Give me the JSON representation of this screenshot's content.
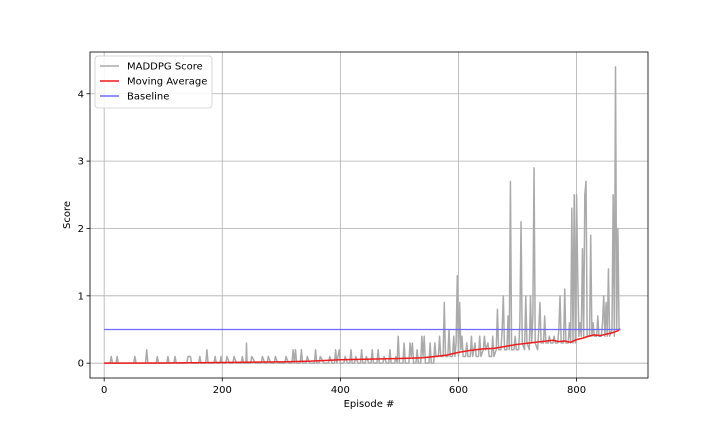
{
  "chart_data": {
    "type": "line",
    "title": "",
    "xlabel": "Episode #",
    "ylabel": "Score",
    "xlim": [
      -24,
      921
    ],
    "ylim": [
      -0.22,
      4.62
    ],
    "x_ticks": [
      0,
      200,
      400,
      600,
      800
    ],
    "y_ticks": [
      0,
      1,
      2,
      3,
      4
    ],
    "grid": true,
    "legend_position": "top-left",
    "series": [
      {
        "name": "MADDPG Score",
        "color": "#aaaaaa",
        "points": [
          [
            0,
            0
          ],
          [
            10,
            0
          ],
          [
            12,
            0.1
          ],
          [
            14,
            0
          ],
          [
            20,
            0
          ],
          [
            22,
            0.1
          ],
          [
            24,
            0
          ],
          [
            50,
            0
          ],
          [
            52,
            0.1
          ],
          [
            54,
            0
          ],
          [
            70,
            0
          ],
          [
            72,
            0.2
          ],
          [
            74,
            0
          ],
          [
            88,
            0
          ],
          [
            90,
            0.1
          ],
          [
            92,
            0
          ],
          [
            106,
            0
          ],
          [
            108,
            0.1
          ],
          [
            110,
            0
          ],
          [
            118,
            0
          ],
          [
            120,
            0.1
          ],
          [
            122,
            0
          ],
          [
            140,
            0
          ],
          [
            142,
            0.1
          ],
          [
            146,
            0.1
          ],
          [
            148,
            0
          ],
          [
            160,
            0
          ],
          [
            162,
            0.1
          ],
          [
            164,
            0
          ],
          [
            172,
            0
          ],
          [
            174,
            0.2
          ],
          [
            176,
            0
          ],
          [
            186,
            0
          ],
          [
            188,
            0.1
          ],
          [
            190,
            0
          ],
          [
            196,
            0
          ],
          [
            198,
            0.1
          ],
          [
            200,
            0
          ],
          [
            206,
            0
          ],
          [
            208,
            0.1
          ],
          [
            212,
            0
          ],
          [
            218,
            0
          ],
          [
            220,
            0.1
          ],
          [
            224,
            0
          ],
          [
            232,
            0
          ],
          [
            234,
            0.1
          ],
          [
            236,
            0
          ],
          [
            240,
            0
          ],
          [
            241,
            0.3
          ],
          [
            242,
            0
          ],
          [
            248,
            0
          ],
          [
            250,
            0.1
          ],
          [
            256,
            0
          ],
          [
            266,
            0
          ],
          [
            268,
            0.1
          ],
          [
            272,
            0
          ],
          [
            276,
            0
          ],
          [
            278,
            0.1
          ],
          [
            282,
            0
          ],
          [
            288,
            0
          ],
          [
            290,
            0.1
          ],
          [
            294,
            0
          ],
          [
            306,
            0
          ],
          [
            308,
            0.1
          ],
          [
            312,
            0
          ],
          [
            318,
            0
          ],
          [
            320,
            0.2
          ],
          [
            322,
            0
          ],
          [
            324,
            0.2
          ],
          [
            326,
            0
          ],
          [
            332,
            0
          ],
          [
            334,
            0.2
          ],
          [
            336,
            0
          ],
          [
            342,
            0
          ],
          [
            344,
            0.1
          ],
          [
            348,
            0
          ],
          [
            356,
            0
          ],
          [
            358,
            0.2
          ],
          [
            360,
            0
          ],
          [
            364,
            0
          ],
          [
            366,
            0.1
          ],
          [
            372,
            0
          ],
          [
            380,
            0
          ],
          [
            382,
            0.1
          ],
          [
            386,
            0
          ],
          [
            390,
            0
          ],
          [
            392,
            0.2
          ],
          [
            394,
            0
          ],
          [
            398,
            0.2
          ],
          [
            400,
            0
          ],
          [
            406,
            0
          ],
          [
            408,
            0.1
          ],
          [
            412,
            0
          ],
          [
            416,
            0
          ],
          [
            418,
            0.2
          ],
          [
            420,
            0
          ],
          [
            424,
            0
          ],
          [
            426,
            0.1
          ],
          [
            430,
            0
          ],
          [
            434,
            0
          ],
          [
            436,
            0.2
          ],
          [
            438,
            0
          ],
          [
            442,
            0
          ],
          [
            444,
            0.1
          ],
          [
            448,
            0
          ],
          [
            452,
            0
          ],
          [
            454,
            0.2
          ],
          [
            456,
            0
          ],
          [
            462,
            0
          ],
          [
            464,
            0.2
          ],
          [
            466,
            0
          ],
          [
            472,
            0
          ],
          [
            474,
            0.1
          ],
          [
            478,
            0
          ],
          [
            482,
            0
          ],
          [
            484,
            0.2
          ],
          [
            486,
            0
          ],
          [
            492,
            0
          ],
          [
            494,
            0.1
          ],
          [
            496,
            0
          ],
          [
            498,
            0.4
          ],
          [
            500,
            0
          ],
          [
            506,
            0
          ],
          [
            508,
            0.3
          ],
          [
            510,
            0
          ],
          [
            516,
            0
          ],
          [
            518,
            0.3
          ],
          [
            520,
            0.1
          ],
          [
            522,
            0.3
          ],
          [
            524,
            0
          ],
          [
            528,
            0
          ],
          [
            530,
            0.2
          ],
          [
            532,
            0
          ],
          [
            536,
            0
          ],
          [
            538,
            0.4
          ],
          [
            540,
            0.1
          ],
          [
            542,
            0.4
          ],
          [
            544,
            0
          ],
          [
            550,
            0
          ],
          [
            552,
            0.3
          ],
          [
            554,
            0
          ],
          [
            558,
            0
          ],
          [
            560,
            0.3
          ],
          [
            562,
            0.1
          ],
          [
            566,
            0.1
          ],
          [
            568,
            0.4
          ],
          [
            570,
            0.1
          ],
          [
            574,
            0.1
          ],
          [
            576,
            0.9
          ],
          [
            578,
            0.1
          ],
          [
            582,
            0.1
          ],
          [
            584,
            0.5
          ],
          [
            586,
            0.1
          ],
          [
            590,
            0.1
          ],
          [
            592,
            0.4
          ],
          [
            594,
            0.1
          ],
          [
            596,
            0.3
          ],
          [
            598,
            1.3
          ],
          [
            600,
            0.1
          ],
          [
            602,
            0.9
          ],
          [
            604,
            0.2
          ],
          [
            606,
            0.4
          ],
          [
            608,
            0.1
          ],
          [
            612,
            0.1
          ],
          [
            614,
            0.3
          ],
          [
            616,
            0.1
          ],
          [
            620,
            0.1
          ],
          [
            622,
            0.4
          ],
          [
            624,
            0.1
          ],
          [
            628,
            0.3
          ],
          [
            630,
            0.1
          ],
          [
            634,
            0.1
          ],
          [
            636,
            0.4
          ],
          [
            638,
            0.1
          ],
          [
            642,
            0.2
          ],
          [
            644,
            0.4
          ],
          [
            646,
            0.2
          ],
          [
            650,
            0.3
          ],
          [
            652,
            0.1
          ],
          [
            656,
            0.1
          ],
          [
            658,
            0.4
          ],
          [
            660,
            0.1
          ],
          [
            664,
            0.2
          ],
          [
            666,
            0.8
          ],
          [
            668,
            0.2
          ],
          [
            672,
            0.2
          ],
          [
            674,
            0.5
          ],
          [
            676,
            1.0
          ],
          [
            678,
            0.2
          ],
          [
            682,
            0.2
          ],
          [
            684,
            0.7
          ],
          [
            686,
            0.2
          ],
          [
            688,
            2.7
          ],
          [
            690,
            0.2
          ],
          [
            694,
            0.2
          ],
          [
            696,
            0.4
          ],
          [
            698,
            0.2
          ],
          [
            702,
            0.2
          ],
          [
            704,
            0.6
          ],
          [
            706,
            2.1
          ],
          [
            708,
            0.3
          ],
          [
            712,
            0.2
          ],
          [
            714,
            1.0
          ],
          [
            716,
            0.3
          ],
          [
            720,
            0.2
          ],
          [
            722,
            1.0
          ],
          [
            724,
            0.3
          ],
          [
            726,
            0.7
          ],
          [
            728,
            2.9
          ],
          [
            730,
            0.3
          ],
          [
            734,
            0.2
          ],
          [
            736,
            0.5
          ],
          [
            738,
            0.9
          ],
          [
            740,
            0.3
          ],
          [
            744,
            0.3
          ],
          [
            746,
            0.7
          ],
          [
            748,
            0.3
          ],
          [
            752,
            0.3
          ],
          [
            754,
            0.4
          ],
          [
            756,
            0.3
          ],
          [
            760,
            0.3
          ],
          [
            762,
            0.4
          ],
          [
            764,
            0.3
          ],
          [
            768,
            0.3
          ],
          [
            770,
            0.5
          ],
          [
            772,
            1.0
          ],
          [
            774,
            0.3
          ],
          [
            778,
            0.3
          ],
          [
            780,
            1.1
          ],
          [
            782,
            0.3
          ],
          [
            786,
            0.3
          ],
          [
            788,
            0.6
          ],
          [
            790,
            0.3
          ],
          [
            792,
            2.3
          ],
          [
            794,
            0.3
          ],
          [
            796,
            2.5
          ],
          [
            798,
            0.3
          ],
          [
            800,
            2.5
          ],
          [
            802,
            1.3
          ],
          [
            804,
            0.4
          ],
          [
            806,
            0.6
          ],
          [
            808,
            0.4
          ],
          [
            810,
            1.7
          ],
          [
            812,
            0.4
          ],
          [
            814,
            2.5
          ],
          [
            816,
            2.7
          ],
          [
            818,
            0.4
          ],
          [
            822,
            0.4
          ],
          [
            824,
            1.9
          ],
          [
            826,
            0.4
          ],
          [
            828,
            0.6
          ],
          [
            830,
            0.4
          ],
          [
            834,
            0.4
          ],
          [
            836,
            0.7
          ],
          [
            838,
            0.4
          ],
          [
            842,
            0.4
          ],
          [
            844,
            0.6
          ],
          [
            846,
            1.0
          ],
          [
            848,
            0.4
          ],
          [
            850,
            0.9
          ],
          [
            852,
            0.4
          ],
          [
            854,
            1.4
          ],
          [
            856,
            0.4
          ],
          [
            860,
            0.5
          ],
          [
            862,
            2.5
          ],
          [
            864,
            0.4
          ],
          [
            866,
            4.4
          ],
          [
            868,
            0.5
          ],
          [
            870,
            2.0
          ],
          [
            872,
            0.5
          ],
          [
            874,
            0.5
          ]
        ]
      },
      {
        "name": "Moving Average",
        "color": "#ee1c1c",
        "points": [
          [
            0,
            0
          ],
          [
            100,
            0.003
          ],
          [
            200,
            0.01
          ],
          [
            300,
            0.02
          ],
          [
            350,
            0.03
          ],
          [
            400,
            0.05
          ],
          [
            450,
            0.06
          ],
          [
            500,
            0.07
          ],
          [
            540,
            0.08
          ],
          [
            560,
            0.1
          ],
          [
            580,
            0.12
          ],
          [
            600,
            0.16
          ],
          [
            620,
            0.19
          ],
          [
            640,
            0.21
          ],
          [
            660,
            0.22
          ],
          [
            680,
            0.25
          ],
          [
            700,
            0.28
          ],
          [
            720,
            0.3
          ],
          [
            740,
            0.32
          ],
          [
            760,
            0.34
          ],
          [
            770,
            0.32
          ],
          [
            780,
            0.33
          ],
          [
            790,
            0.31
          ],
          [
            800,
            0.35
          ],
          [
            810,
            0.37
          ],
          [
            820,
            0.4
          ],
          [
            830,
            0.42
          ],
          [
            840,
            0.41
          ],
          [
            850,
            0.43
          ],
          [
            860,
            0.45
          ],
          [
            870,
            0.48
          ],
          [
            874,
            0.51
          ]
        ]
      },
      {
        "name": "Baseline",
        "color": "#6b6bff",
        "points": [
          [
            0,
            0.5
          ],
          [
            874,
            0.5
          ]
        ]
      }
    ]
  }
}
